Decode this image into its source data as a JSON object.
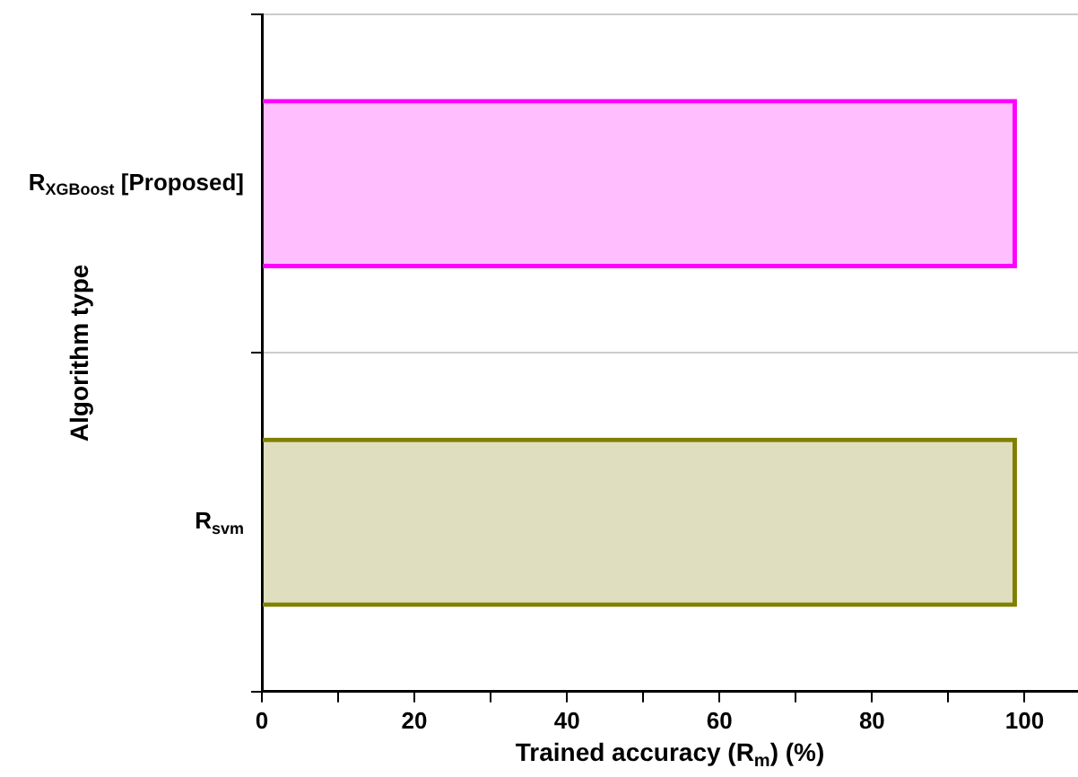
{
  "chart_data": {
    "type": "bar",
    "orientation": "horizontal",
    "xlabel": "Trained accuracy (R$_{m}$) (%)",
    "ylabel": "Algorithm type",
    "categories": [
      "R$_{XGBoost}$ [Proposed]",
      "R$_{svm}$"
    ],
    "values": [
      99,
      99
    ],
    "colors": [
      "#ff00ff",
      "#808000"
    ],
    "xlim": [
      0,
      107
    ],
    "xticks": [
      0,
      {
        "value": 10,
        "label": null
      },
      20,
      {
        "value": 30,
        "label": null
      },
      40,
      {
        "value": 50,
        "label": null
      },
      60,
      {
        "value": 70,
        "label": null
      },
      80,
      {
        "value": 90,
        "label": null
      },
      100
    ],
    "grid": "y",
    "legend": false
  }
}
